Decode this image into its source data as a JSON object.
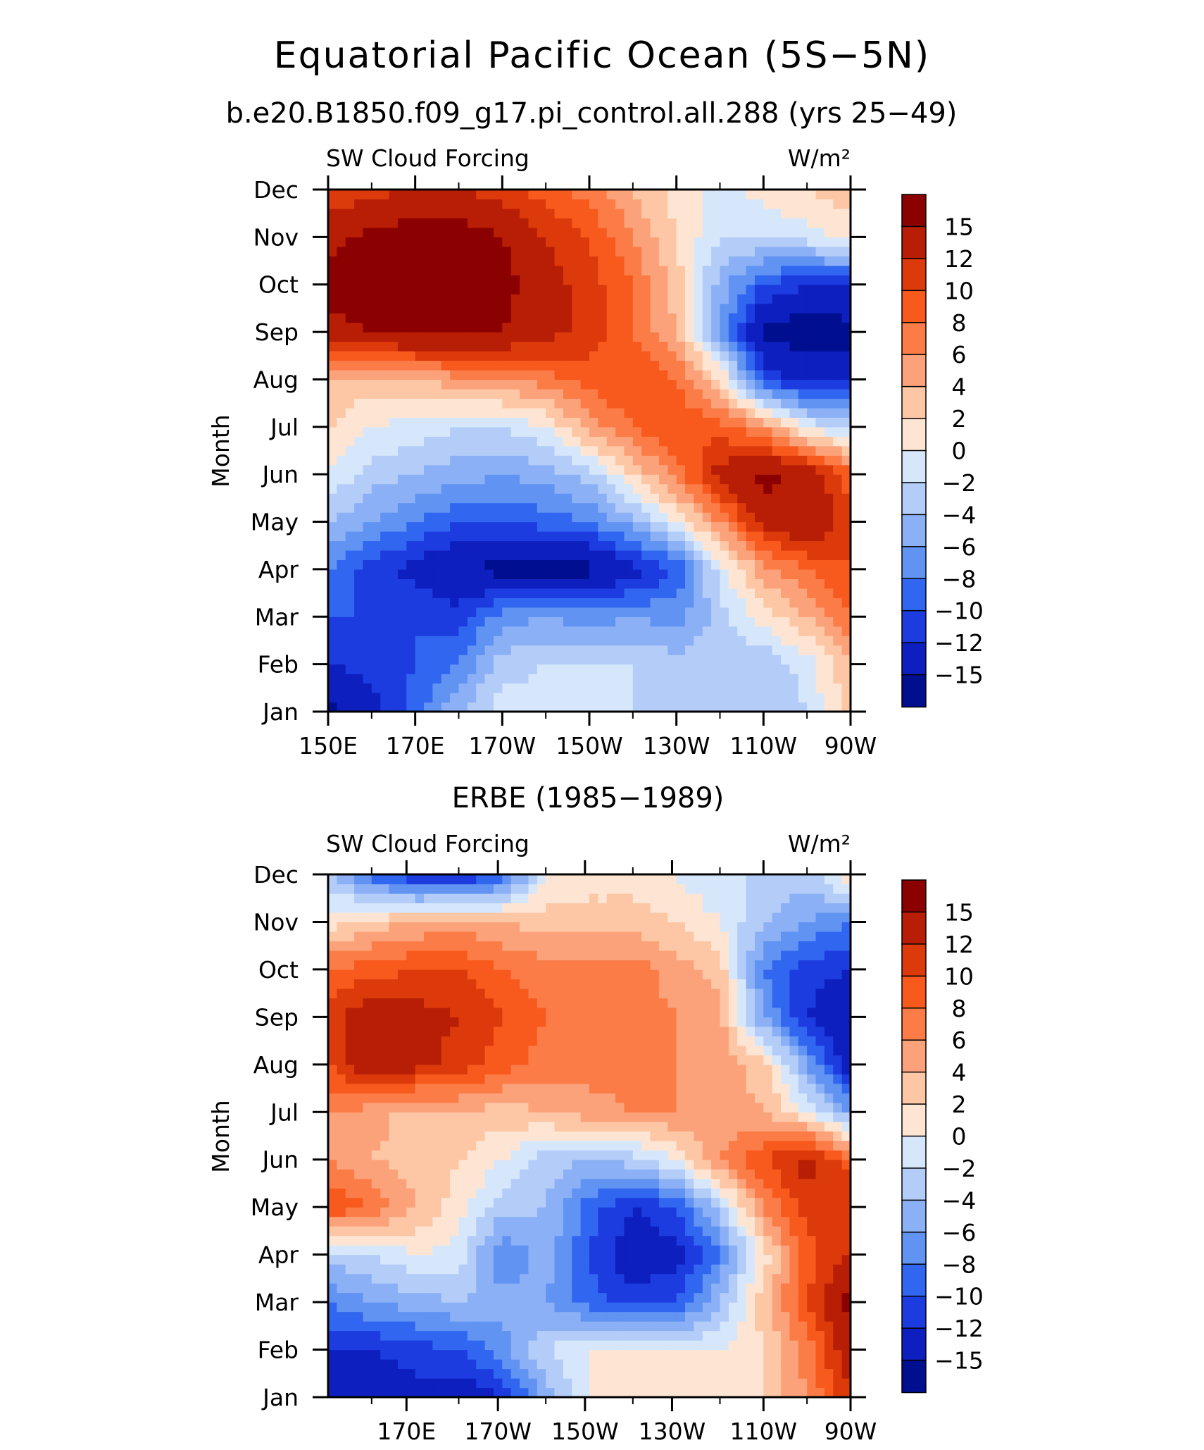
{
  "title": "Equatorial Pacific Ocean (5S−5N)",
  "chart_data": [
    {
      "type": "heatmap",
      "title": "b.e20.B1850.f09_g17.pi_control.all.288 (yrs 25−49)",
      "left_label": "SW Cloud Forcing",
      "right_label": "W/m²",
      "ylabel": "Month",
      "x_ticks": [
        "150E",
        "170E",
        "170W",
        "150W",
        "130W",
        "110W",
        "90W"
      ],
      "y_ticks": [
        "Jan",
        "Feb",
        "Mar",
        "Apr",
        "May",
        "Jun",
        "Jul",
        "Aug",
        "Sep",
        "Oct",
        "Nov",
        "Dec"
      ],
      "x_range": [
        150,
        270
      ],
      "y_range": [
        1,
        12
      ],
      "colorbar_levels": [
        "15",
        "12",
        "10",
        "8",
        "6",
        "4",
        "2",
        "0",
        "−2",
        "−4",
        "−6",
        "−8",
        "−10",
        "−12",
        "−15"
      ],
      "colorbar_colors": [
        "#8b0000",
        "#b81e05",
        "#dd3a0c",
        "#f85a1e",
        "#fb7c47",
        "#fca27a",
        "#fdc6a5",
        "#fee5d3",
        "#d6e7fb",
        "#b3cdf8",
        "#8cb0f5",
        "#6093f2",
        "#3166f0",
        "#1c3ce0",
        "#0e1fbf",
        "#000f8f"
      ],
      "longitudes": [
        150,
        160,
        170,
        180,
        190,
        200,
        210,
        220,
        230,
        240,
        250,
        260,
        270
      ],
      "values": [
        [
          -16,
          -13,
          -9,
          -4,
          -1,
          -1,
          -1,
          -2,
          -2,
          -3,
          -4,
          -2,
          3
        ],
        [
          -12,
          -11,
          -10,
          -8,
          -3,
          -2,
          -2,
          -2,
          -3,
          -3,
          -4,
          -1,
          4
        ],
        [
          -10,
          -10,
          -10,
          -11,
          -7,
          -6,
          -7,
          -6,
          -7,
          -3,
          1,
          4,
          8
        ],
        [
          -8,
          -11,
          -13,
          -15,
          -16,
          -17,
          -16,
          -13,
          -10,
          -1,
          5,
          8,
          10
        ],
        [
          -4,
          -6,
          -8,
          -10,
          -10,
          -9,
          -8,
          -5,
          0,
          6,
          13,
          15,
          10
        ],
        [
          0,
          -3,
          -4,
          -5,
          -6,
          -5,
          -3,
          2,
          7,
          13,
          16,
          14,
          9
        ],
        [
          2,
          0,
          -1,
          -2,
          -2,
          0,
          5,
          8,
          10,
          9,
          6,
          0,
          -3
        ],
        [
          4,
          3,
          4,
          5,
          6,
          7,
          9,
          10,
          8,
          2,
          -10,
          -13,
          -13
        ],
        [
          14,
          15,
          16,
          16,
          15,
          13,
          11,
          8,
          4,
          -6,
          -16,
          -17,
          -16
        ],
        [
          16,
          17,
          17,
          17,
          16,
          13,
          11,
          8,
          3,
          -5,
          -10,
          -12,
          -12
        ],
        [
          14,
          16,
          17,
          17,
          15,
          12,
          10,
          6,
          2,
          -2,
          -2,
          -1,
          1
        ],
        [
          10,
          11,
          12,
          12,
          11,
          9,
          7,
          4,
          1,
          -1,
          1,
          2,
          3
        ]
      ]
    },
    {
      "type": "heatmap",
      "title": "ERBE (1985−1989)",
      "left_label": "SW Cloud Forcing",
      "right_label": "W/m²",
      "ylabel": "Month",
      "x_ticks": [
        "170E",
        "170W",
        "150W",
        "130W",
        "110W",
        "90W"
      ],
      "y_ticks": [
        "Jan",
        "Feb",
        "Mar",
        "Apr",
        "May",
        "Jun",
        "Jul",
        "Aug",
        "Sep",
        "Oct",
        "Nov",
        "Dec"
      ],
      "x_range": [
        150,
        270
      ],
      "y_range": [
        1,
        12
      ],
      "colorbar_levels": [
        "15",
        "12",
        "10",
        "8",
        "6",
        "4",
        "2",
        "0",
        "−2",
        "−4",
        "−6",
        "−8",
        "−10",
        "−12",
        "−15"
      ],
      "colorbar_colors": [
        "#8b0000",
        "#b81e05",
        "#dd3a0c",
        "#f85a1e",
        "#fb7c47",
        "#fca27a",
        "#fdc6a5",
        "#fee5d3",
        "#d6e7fb",
        "#b3cdf8",
        "#8cb0f5",
        "#6093f2",
        "#3166f0",
        "#1c3ce0",
        "#0e1fbf",
        "#000f8f"
      ],
      "longitudes": [
        150,
        160,
        170,
        180,
        190,
        200,
        210,
        220,
        230,
        240,
        250,
        260,
        270
      ],
      "values": [
        [
          -14,
          -14,
          -13,
          -14,
          -12,
          -5,
          0,
          1,
          1,
          1,
          2,
          6,
          12
        ],
        [
          -12,
          -12,
          -11,
          -10,
          -7,
          -2,
          0,
          0,
          0,
          0,
          2,
          7,
          14
        ],
        [
          -8,
          -6,
          -5,
          -4,
          -5,
          -6,
          -9,
          -11,
          -10,
          -4,
          3,
          10,
          16
        ],
        [
          -3,
          -2,
          0,
          -1,
          -8,
          -5,
          -10,
          -14,
          -13,
          -8,
          1,
          9,
          12
        ],
        [
          10,
          8,
          4,
          1,
          -3,
          -4,
          -9,
          -12,
          -10,
          -3,
          6,
          11,
          12
        ],
        [
          6,
          4,
          3,
          2,
          0,
          -3,
          -4,
          -3,
          0,
          6,
          10,
          13,
          9
        ],
        [
          6,
          5,
          3,
          4,
          3,
          4,
          5,
          6,
          6,
          5,
          4,
          0,
          -6
        ],
        [
          10,
          14,
          13,
          11,
          9,
          7,
          7,
          7,
          6,
          5,
          3,
          -6,
          -14
        ],
        [
          11,
          14,
          13,
          12,
          10,
          8,
          7,
          7,
          6,
          5,
          -6,
          -12,
          -15
        ],
        [
          8,
          9,
          10,
          10,
          8,
          7,
          7,
          7,
          5,
          3,
          -8,
          -11,
          -12
        ],
        [
          1,
          3,
          4,
          5,
          4,
          3,
          3,
          3,
          2,
          0,
          -4,
          -6,
          -8
        ],
        [
          -3,
          -9,
          -12,
          -13,
          -10,
          0,
          1,
          1,
          0,
          -2,
          -2,
          -3,
          2
        ]
      ]
    }
  ]
}
